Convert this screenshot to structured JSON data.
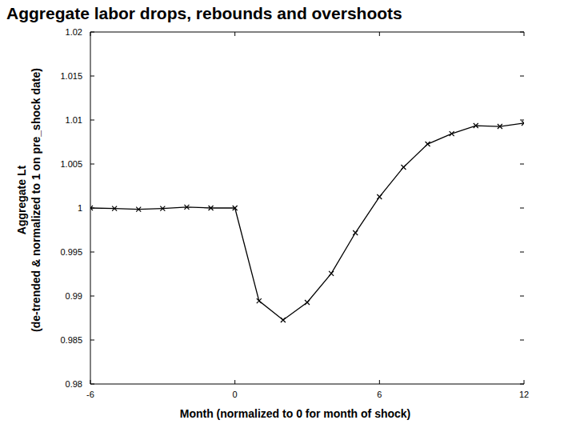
{
  "chart_data": {
    "type": "line",
    "title": "Aggregate labor drops, rebounds and overshoots",
    "xlabel": "Month (normalized to 0 for month of shock)",
    "ylabel": [
      "Aggregate Lt",
      "(de-trended & normalized to 1 on pre_shock date)"
    ],
    "x": [
      -6,
      -5,
      -4,
      -3,
      -2,
      -1,
      0,
      1,
      2,
      3,
      4,
      5,
      6,
      7,
      8,
      9,
      10,
      11,
      12
    ],
    "series": [
      {
        "name": "Aggregate Lt",
        "color": "#000000",
        "marker": "x",
        "line_style": "solid",
        "values": [
          1.0,
          0.99995,
          0.99985,
          0.99995,
          1.0001,
          1.0,
          1.0,
          0.98945,
          0.98727,
          0.98927,
          0.99255,
          0.99718,
          1.00127,
          1.00464,
          1.00727,
          1.00845,
          1.00936,
          1.00927,
          1.00964
        ]
      }
    ],
    "xlim": [
      -6,
      12
    ],
    "xticks": [
      -6,
      0,
      6,
      12
    ],
    "ylim": [
      0.98,
      1.02
    ],
    "yticks": [
      0.98,
      0.985,
      0.99,
      0.995,
      1,
      1.005,
      1.01,
      1.015,
      1.02
    ],
    "grid": false
  }
}
